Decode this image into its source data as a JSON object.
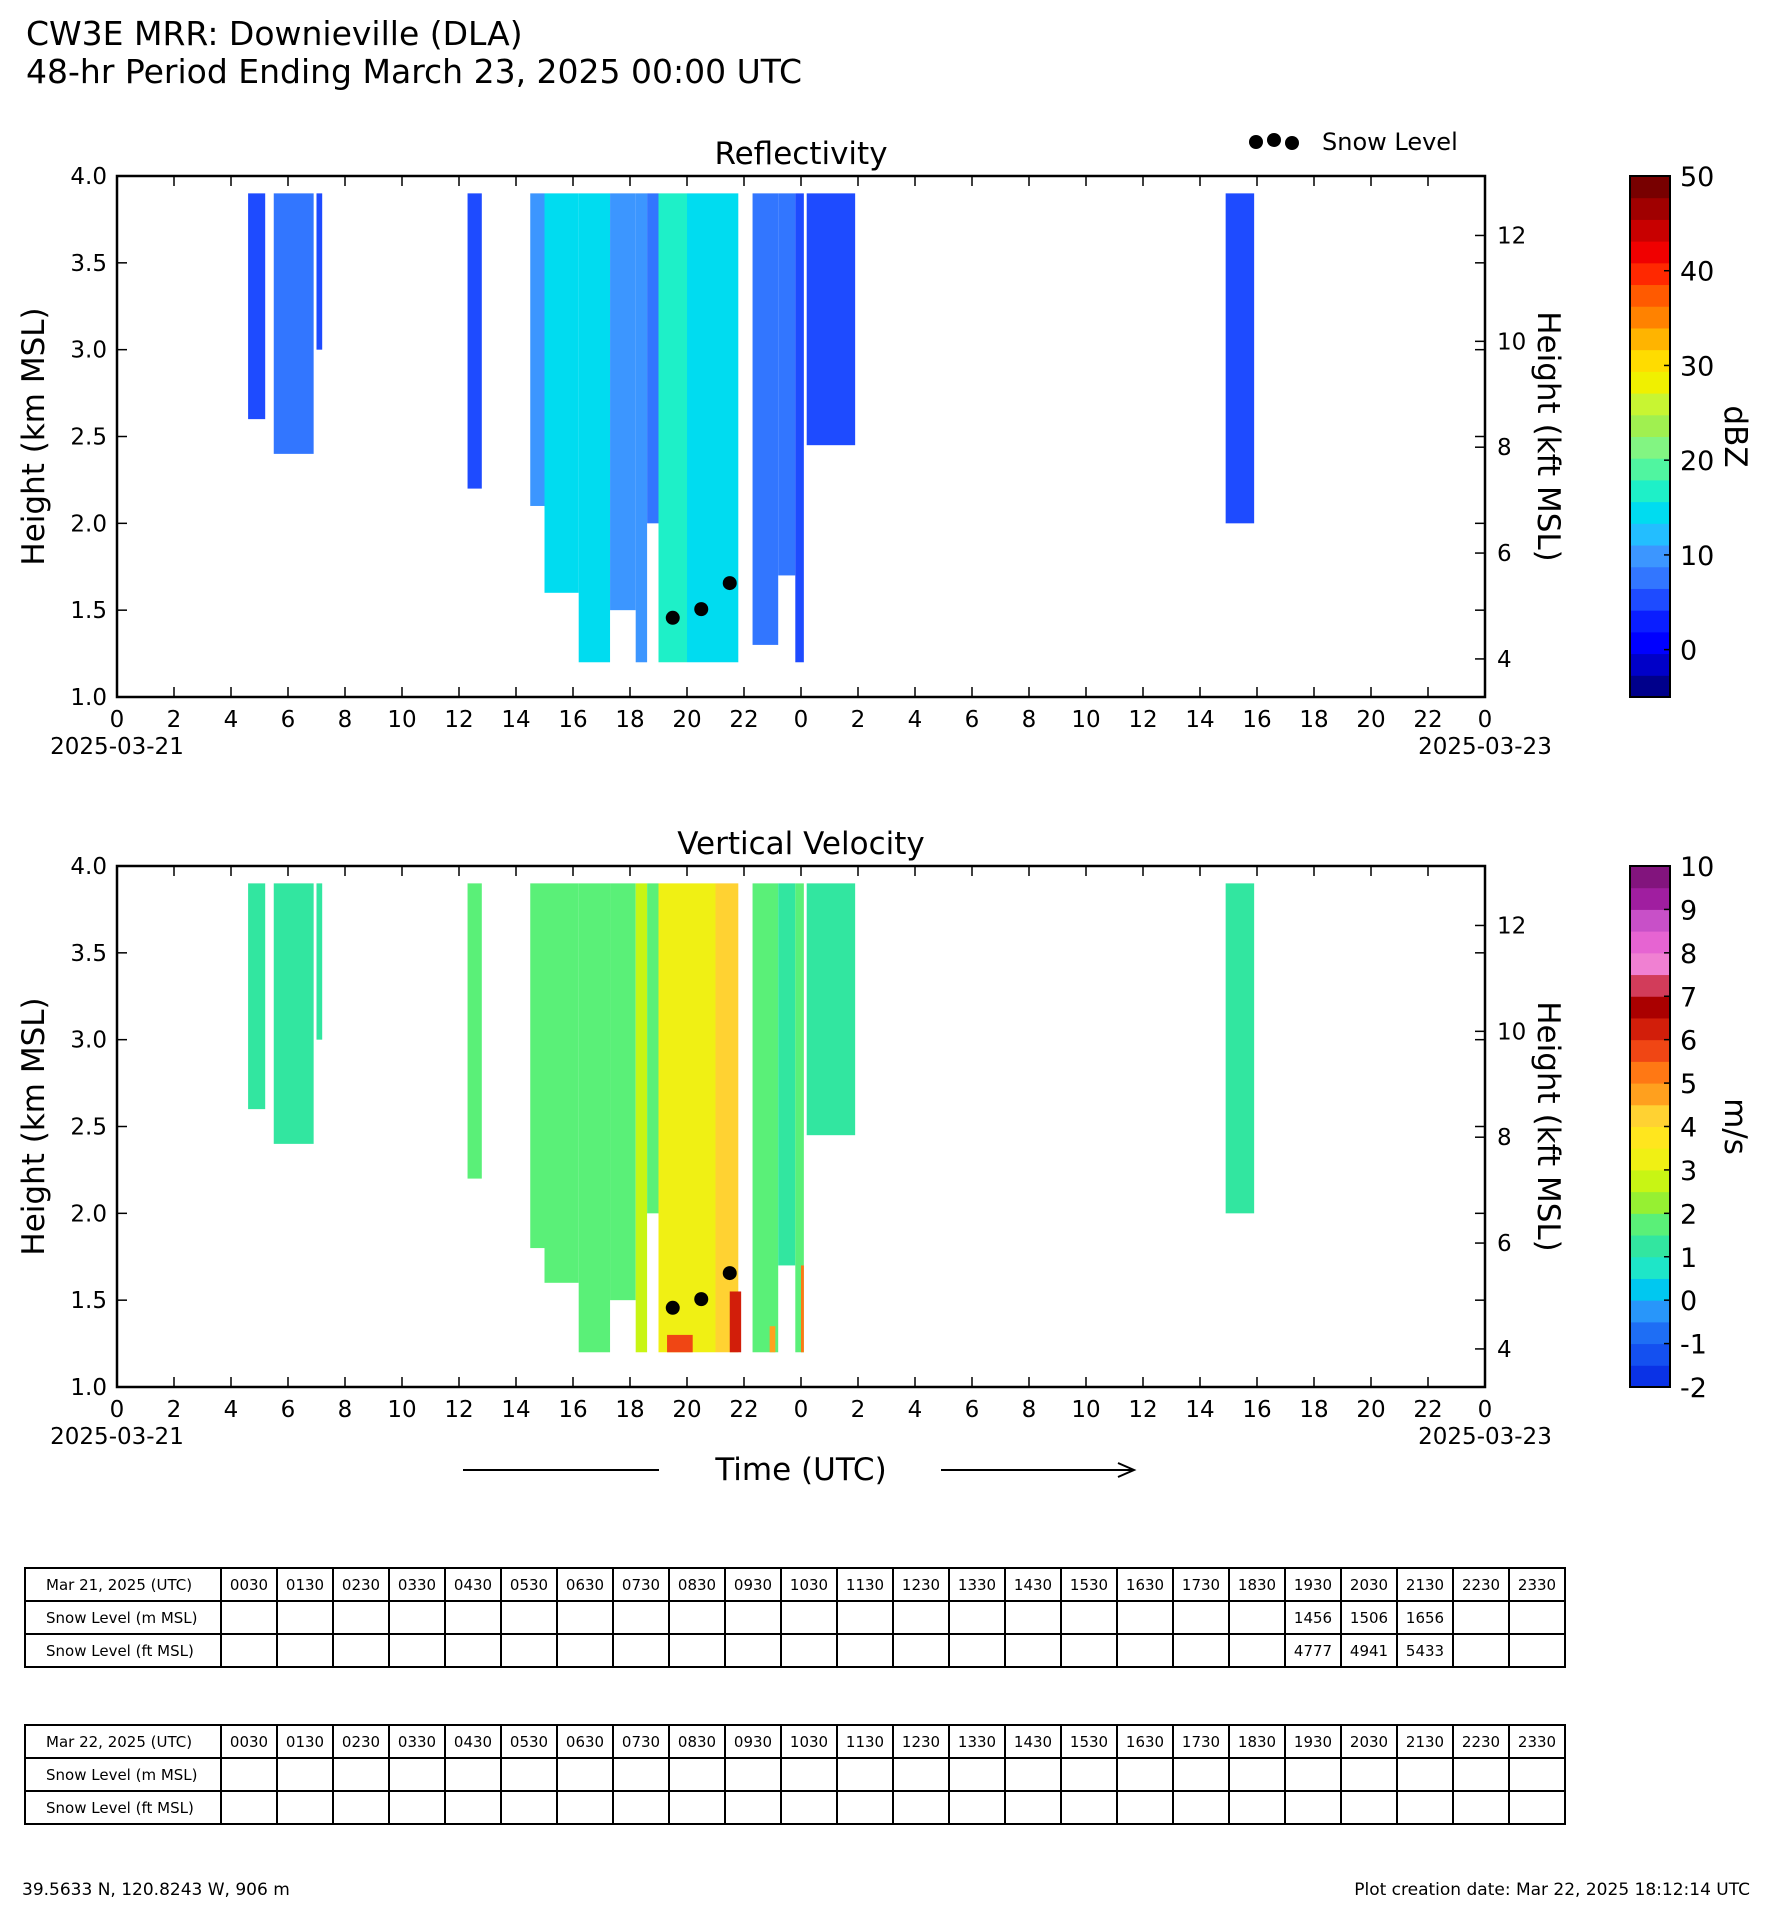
{
  "header": {
    "title": "CW3E MRR: Downieville (DLA)",
    "subtitle": "48-hr Period Ending March 23, 2025 00:00 UTC"
  },
  "chart_data": [
    {
      "type": "heatmap",
      "title": "Reflectivity",
      "ylabel": "Height (km MSL)",
      "ylabel_right": "Height (kft MSL)",
      "xlabel": "",
      "ylim": [
        1.0,
        4.0
      ],
      "yticks": [
        "1.0",
        "1.5",
        "2.0",
        "2.5",
        "3.0",
        "3.5",
        "4.0"
      ],
      "yticks_right": [
        "4",
        "6",
        "8",
        "10",
        "12"
      ],
      "xticks": [
        "0",
        "2",
        "4",
        "6",
        "8",
        "10",
        "12",
        "14",
        "16",
        "18",
        "20",
        "22",
        "0",
        "2",
        "4",
        "6",
        "8",
        "10",
        "12",
        "14",
        "16",
        "18",
        "20",
        "22",
        "0"
      ],
      "date_start": "2025-03-21",
      "date_end": "2025-03-23",
      "legend": "Snow Level",
      "colorbar": {
        "label": "dBZ",
        "range": [
          -5,
          50
        ],
        "ticks": [
          "0",
          "10",
          "20",
          "30",
          "40",
          "50"
        ],
        "colors": [
          "#00008b",
          "#0000c8",
          "#0000ff",
          "#0a1eff",
          "#1e4bff",
          "#3276ff",
          "#3c96ff",
          "#23beff",
          "#00dcf0",
          "#1ef0c8",
          "#50f5a0",
          "#82f582",
          "#a0f050",
          "#c8f532",
          "#f0f000",
          "#ffdc00",
          "#ffb400",
          "#ff8200",
          "#ff5a00",
          "#ff2800",
          "#f00000",
          "#c80000",
          "#a00000",
          "#780000"
        ]
      },
      "precip_segments": [
        {
          "t0": 4.6,
          "t1": 5.2,
          "bot": 2.6,
          "dbz": 6
        },
        {
          "t0": 5.5,
          "t1": 6.9,
          "bot": 2.4,
          "dbz": 8
        },
        {
          "t0": 7.0,
          "t1": 7.2,
          "bot": 3.0,
          "dbz": 5
        },
        {
          "t0": 12.3,
          "t1": 12.8,
          "bot": 2.2,
          "dbz": 6
        },
        {
          "t0": 14.5,
          "t1": 15.0,
          "bot": 2.1,
          "dbz": 10
        },
        {
          "t0": 15.0,
          "t1": 16.2,
          "bot": 1.6,
          "dbz": 14
        },
        {
          "t0": 16.2,
          "t1": 17.3,
          "bot": 1.2,
          "dbz": 14
        },
        {
          "t0": 17.3,
          "t1": 18.2,
          "bot": 1.5,
          "dbz": 10
        },
        {
          "t0": 18.2,
          "t1": 18.6,
          "bot": 1.2,
          "dbz": 9
        },
        {
          "t0": 18.6,
          "t1": 19.0,
          "bot": 2.0,
          "dbz": 7
        },
        {
          "t0": 19.0,
          "t1": 20.0,
          "bot": 1.2,
          "dbz": 16
        },
        {
          "t0": 20.0,
          "t1": 21.0,
          "bot": 1.2,
          "dbz": 15
        },
        {
          "t0": 21.0,
          "t1": 21.8,
          "bot": 1.2,
          "dbz": 14
        },
        {
          "t0": 22.3,
          "t1": 23.2,
          "bot": 1.3,
          "dbz": 8
        },
        {
          "t0": 23.2,
          "t1": 23.8,
          "bot": 1.7,
          "dbz": 7
        },
        {
          "t0": 23.8,
          "t1": 24.1,
          "bot": 1.2,
          "dbz": 5
        },
        {
          "t0": 24.2,
          "t1": 25.9,
          "bot": 2.45,
          "dbz": 5
        },
        {
          "t0": 38.9,
          "t1": 39.9,
          "bot": 2.0,
          "dbz": 6
        }
      ],
      "snow_level_points": [
        {
          "x": 19.5,
          "y": 1.456
        },
        {
          "x": 20.5,
          "y": 1.506
        },
        {
          "x": 21.5,
          "y": 1.656
        }
      ]
    },
    {
      "type": "heatmap",
      "title": "Vertical Velocity",
      "ylabel": "Height (km MSL)",
      "ylabel_right": "Height (kft MSL)",
      "xlabel": "Time (UTC)",
      "ylim": [
        1.0,
        4.0
      ],
      "yticks": [
        "1.0",
        "1.5",
        "2.0",
        "2.5",
        "3.0",
        "3.5",
        "4.0"
      ],
      "yticks_right": [
        "4",
        "6",
        "8",
        "10",
        "12"
      ],
      "xticks": [
        "0",
        "2",
        "4",
        "6",
        "8",
        "10",
        "12",
        "14",
        "16",
        "18",
        "20",
        "22",
        "0",
        "2",
        "4",
        "6",
        "8",
        "10",
        "12",
        "14",
        "16",
        "18",
        "20",
        "22",
        "0"
      ],
      "date_start": "2025-03-21",
      "date_end": "2025-03-23",
      "colorbar": {
        "label": "m/s",
        "range": [
          -2,
          10
        ],
        "ticks": [
          "-2",
          "-1",
          "0",
          "1",
          "2",
          "3",
          "4",
          "5",
          "6",
          "7",
          "8",
          "9",
          "10"
        ],
        "colors": [
          "#0a32e6",
          "#1450f0",
          "#1e6ef5",
          "#2896fa",
          "#00c8f0",
          "#1ee6c8",
          "#32e6a0",
          "#5af078",
          "#96f032",
          "#c8f514",
          "#f0f014",
          "#ffe61e",
          "#ffd232",
          "#ffa01e",
          "#ff7814",
          "#f04614",
          "#d21e0a",
          "#aa0000",
          "#d23c5a",
          "#f080d2",
          "#e664d2",
          "#c850c8",
          "#a01ea0",
          "#82147d"
        ]
      },
      "precip_segments": [
        {
          "t0": 4.6,
          "t1": 5.2,
          "bot": 2.6,
          "w": 1.2
        },
        {
          "t0": 5.5,
          "t1": 6.9,
          "bot": 2.4,
          "w": 1.2
        },
        {
          "t0": 7.0,
          "t1": 7.2,
          "bot": 3.0,
          "w": 1.2
        },
        {
          "t0": 12.3,
          "t1": 12.8,
          "bot": 2.2,
          "w": 1.8
        },
        {
          "t0": 14.5,
          "t1": 15.0,
          "bot": 1.8,
          "w": 1.9
        },
        {
          "t0": 15.0,
          "t1": 16.2,
          "bot": 1.6,
          "w": 1.9
        },
        {
          "t0": 16.2,
          "t1": 17.3,
          "bot": 1.2,
          "w": 1.6
        },
        {
          "t0": 17.3,
          "t1": 18.2,
          "bot": 1.5,
          "w": 1.6
        },
        {
          "t0": 18.2,
          "t1": 18.6,
          "bot": 1.2,
          "w": 2.6
        },
        {
          "t0": 18.6,
          "t1": 19.0,
          "bot": 2.0,
          "w": 1.8
        },
        {
          "t0": 19.0,
          "t1": 20.0,
          "bot": 1.2,
          "w": 3.0
        },
        {
          "t0": 20.0,
          "t1": 21.0,
          "bot": 1.2,
          "w": 3.0
        },
        {
          "t0": 21.0,
          "t1": 21.8,
          "bot": 1.2,
          "w": 4.0
        },
        {
          "t0": 22.3,
          "t1": 23.2,
          "bot": 1.2,
          "w": 1.8
        },
        {
          "t0": 23.2,
          "t1": 23.8,
          "bot": 1.7,
          "w": 1.3
        },
        {
          "t0": 23.8,
          "t1": 24.1,
          "bot": 1.2,
          "w": 1.5
        },
        {
          "t0": 24.2,
          "t1": 25.9,
          "bot": 2.45,
          "w": 1.1
        },
        {
          "t0": 38.9,
          "t1": 39.9,
          "bot": 2.0,
          "w": 1.0
        }
      ],
      "strong_updraft_segments": [
        {
          "t0": 19.3,
          "t1": 20.2,
          "top": 1.3,
          "w": 5.5
        },
        {
          "t0": 21.5,
          "t1": 21.9,
          "top": 1.55,
          "w": 6.0
        },
        {
          "t0": 22.9,
          "t1": 23.1,
          "top": 1.35,
          "w": 4.5
        },
        {
          "t0": 24.0,
          "t1": 24.1,
          "top": 1.7,
          "w": 5.0
        }
      ],
      "snow_level_points": [
        {
          "x": 19.5,
          "y": 1.456
        },
        {
          "x": 20.5,
          "y": 1.506
        },
        {
          "x": 21.5,
          "y": 1.656
        }
      ]
    }
  ],
  "tables": [
    {
      "header_label": "Mar 21, 2025 (UTC)",
      "times": [
        "0030",
        "0130",
        "0230",
        "0330",
        "0430",
        "0530",
        "0630",
        "0730",
        "0830",
        "0930",
        "1030",
        "1130",
        "1230",
        "1330",
        "1430",
        "1530",
        "1630",
        "1730",
        "1830",
        "1930",
        "2030",
        "2130",
        "2230",
        "2330"
      ],
      "rows": [
        {
          "label": "Snow Level (m MSL)",
          "values": [
            "",
            "",
            "",
            "",
            "",
            "",
            "",
            "",
            "",
            "",
            "",
            "",
            "",
            "",
            "",
            "",
            "",
            "",
            "",
            "1456",
            "1506",
            "1656",
            "",
            ""
          ]
        },
        {
          "label": "Snow Level (ft MSL)",
          "values": [
            "",
            "",
            "",
            "",
            "",
            "",
            "",
            "",
            "",
            "",
            "",
            "",
            "",
            "",
            "",
            "",
            "",
            "",
            "",
            "4777",
            "4941",
            "5433",
            "",
            ""
          ]
        }
      ]
    },
    {
      "header_label": "Mar 22, 2025 (UTC)",
      "times": [
        "0030",
        "0130",
        "0230",
        "0330",
        "0430",
        "0530",
        "0630",
        "0730",
        "0830",
        "0930",
        "1030",
        "1130",
        "1230",
        "1330",
        "1430",
        "1530",
        "1630",
        "1730",
        "1830",
        "1930",
        "2030",
        "2130",
        "2230",
        "2330"
      ],
      "rows": [
        {
          "label": "Snow Level (m MSL)",
          "values": [
            "",
            "",
            "",
            "",
            "",
            "",
            "",
            "",
            "",
            "",
            "",
            "",
            "",
            "",
            "",
            "",
            "",
            "",
            "",
            "",
            "",
            "",
            "",
            ""
          ]
        },
        {
          "label": "Snow Level (ft MSL)",
          "values": [
            "",
            "",
            "",
            "",
            "",
            "",
            "",
            "",
            "",
            "",
            "",
            "",
            "",
            "",
            "",
            "",
            "",
            "",
            "",
            "",
            "",
            "",
            "",
            ""
          ]
        }
      ]
    }
  ],
  "footer": {
    "location": "39.5633 N, 120.8243 W, 906 m",
    "creation": "Plot creation date: Mar 22, 2025 18:12:14 UTC"
  }
}
